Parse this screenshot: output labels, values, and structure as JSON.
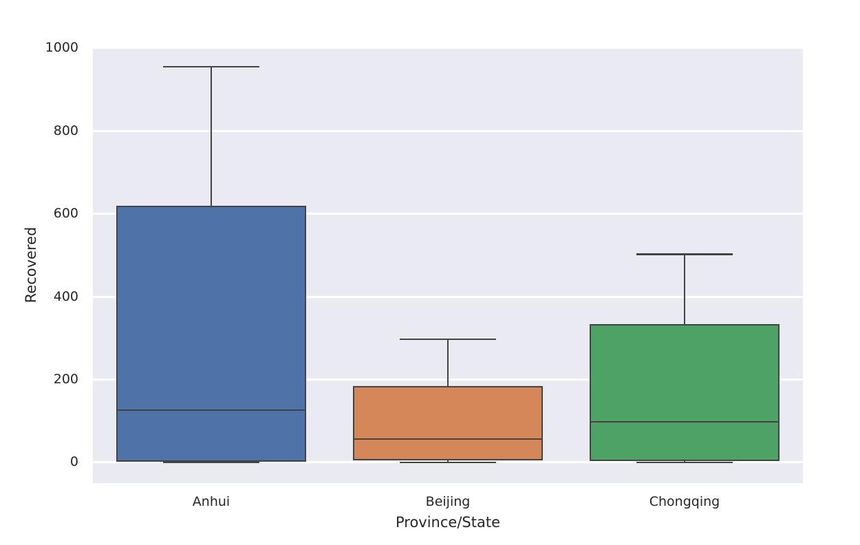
{
  "figure": {
    "background": "#ffffff",
    "plot_background": "#EAEAF2",
    "grid_color": "#ffffff",
    "edge_color": "#434343",
    "text_color": "#262626"
  },
  "chart_data": {
    "type": "box",
    "title": "",
    "xlabel": "Province/State",
    "ylabel": "Recovered",
    "categories": [
      "Anhui",
      "Beijing",
      "Chongqing"
    ],
    "yticks": [
      0,
      200,
      400,
      600,
      800,
      1000
    ],
    "ylim": [
      -50,
      1003
    ],
    "grid": true,
    "legend": false,
    "series": [
      {
        "name": "Anhui",
        "color": "#4F73A8",
        "min": 0,
        "q1": 4,
        "median": 126,
        "q3": 617,
        "max": 955
      },
      {
        "name": "Beijing",
        "color": "#D5875A",
        "min": 0,
        "q1": 7,
        "median": 56,
        "q3": 182,
        "max": 297
      },
      {
        "name": "Chongqing",
        "color": "#4EA266",
        "min": 0,
        "q1": 6,
        "median": 98,
        "q3": 332,
        "max": 502
      }
    ]
  }
}
